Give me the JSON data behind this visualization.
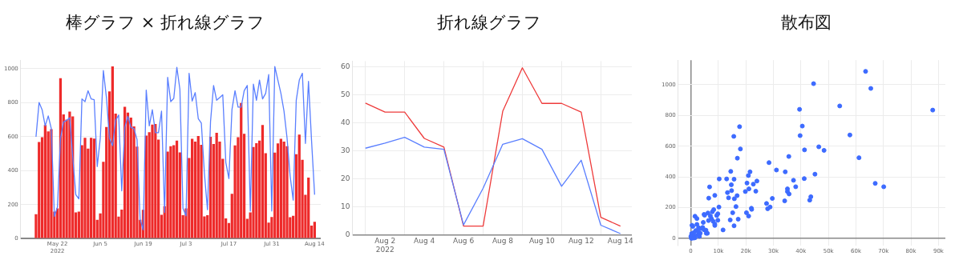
{
  "chart_data": [
    {
      "type": "bar",
      "title": "棒グラフ × 折れ線グラフ",
      "x": [
        "2022-05-15",
        "2022-05-16",
        "2022-05-17",
        "2022-05-18",
        "2022-05-19",
        "2022-05-20",
        "2022-05-21",
        "2022-05-22",
        "2022-05-23",
        "2022-05-24",
        "2022-05-25",
        "2022-05-26",
        "2022-05-27",
        "2022-05-28",
        "2022-05-29",
        "2022-05-30",
        "2022-05-31",
        "2022-06-01",
        "2022-06-02",
        "2022-06-03",
        "2022-06-04",
        "2022-06-05",
        "2022-06-06",
        "2022-06-07",
        "2022-06-08",
        "2022-06-09",
        "2022-06-10",
        "2022-06-11",
        "2022-06-12",
        "2022-06-13",
        "2022-06-14",
        "2022-06-15",
        "2022-06-16",
        "2022-06-17",
        "2022-06-18",
        "2022-06-19",
        "2022-06-20",
        "2022-06-21",
        "2022-06-22",
        "2022-06-23",
        "2022-06-24",
        "2022-06-25",
        "2022-06-26",
        "2022-06-27",
        "2022-06-28",
        "2022-06-29",
        "2022-06-30",
        "2022-07-01",
        "2022-07-02",
        "2022-07-03",
        "2022-07-04",
        "2022-07-05",
        "2022-07-06",
        "2022-07-07",
        "2022-07-08",
        "2022-07-09",
        "2022-07-10",
        "2022-07-11",
        "2022-07-12",
        "2022-07-13",
        "2022-07-14",
        "2022-07-15",
        "2022-07-16",
        "2022-07-17",
        "2022-07-18",
        "2022-07-19",
        "2022-07-20",
        "2022-07-21",
        "2022-07-22",
        "2022-07-23",
        "2022-07-24",
        "2022-07-25",
        "2022-07-26",
        "2022-07-27",
        "2022-07-28",
        "2022-07-29",
        "2022-07-30",
        "2022-07-31",
        "2022-08-01",
        "2022-08-02",
        "2022-08-03",
        "2022-08-04",
        "2022-08-05",
        "2022-08-06",
        "2022-08-07",
        "2022-08-08",
        "2022-08-09",
        "2022-08-10",
        "2022-08-11",
        "2022-08-12",
        "2022-08-13",
        "2022-08-14"
      ],
      "series": [
        {
          "type": "bar",
          "color": "#ee2a2a",
          "values": [
            143,
            568,
            596,
            668,
            631,
            644,
            159,
            178,
            944,
            731,
            700,
            747,
            719,
            154,
            159,
            550,
            593,
            529,
            593,
            588,
            111,
            148,
            452,
            657,
            866,
            1013,
            736,
            129,
            170,
            776,
            741,
            712,
            660,
            541,
            111,
            169,
            606,
            626,
            671,
            674,
            583,
            140,
            191,
            512,
            544,
            550,
            576,
            507,
            137,
            178,
            474,
            587,
            571,
            604,
            552,
            130,
            137,
            599,
            556,
            622,
            571,
            469,
            119,
            91,
            264,
            548,
            596,
            798,
            617,
            116,
            154,
            539,
            561,
            576,
            668,
            502,
            94,
            127,
            506,
            560,
            587,
            571,
            544,
            126,
            134,
            496,
            612,
            464,
            258,
            359,
            76,
            99
          ]
        },
        {
          "type": "line",
          "color": "#5a7fff",
          "values": [
            599,
            801,
            758,
            663,
            722,
            647,
            130,
            186,
            591,
            687,
            695,
            711,
            480,
            258,
            234,
            822,
            806,
            870,
            822,
            817,
            424,
            591,
            989,
            830,
            591,
            547,
            695,
            727,
            281,
            655,
            719,
            655,
            647,
            583,
            114,
            51,
            874,
            663,
            758,
            623,
            623,
            750,
            154,
            949,
            806,
            825,
            1008,
            878,
            178,
            134,
            973,
            809,
            859,
            706,
            680,
            385,
            170,
            687,
            901,
            814,
            830,
            846,
            448,
            353,
            758,
            870,
            774,
            774,
            870,
            901,
            162,
            909,
            814,
            933,
            822,
            854,
            965,
            162,
            1013,
            933,
            854,
            750,
            591,
            369,
            226,
            814,
            933,
            973,
            560,
            925,
            576,
            258
          ]
        }
      ],
      "xlim": [
        "2022-05-10",
        "2022-08-16"
      ],
      "xticks": [
        {
          "value": "2022-05-22",
          "label": "May 22\n2022"
        },
        {
          "value": "2022-06-05",
          "label": "Jun 5"
        },
        {
          "value": "2022-06-19",
          "label": "Jun 19"
        },
        {
          "value": "2022-07-03",
          "label": "Jul 3"
        },
        {
          "value": "2022-07-17",
          "label": "Jul 17"
        },
        {
          "value": "2022-07-31",
          "label": "Jul 31"
        },
        {
          "value": "2022-08-14",
          "label": "Aug 14"
        }
      ],
      "ylim": [
        0,
        1050
      ],
      "yticks": [
        0,
        200,
        400,
        600,
        800,
        1000
      ],
      "grid": "y",
      "legend": false,
      "marker": "none"
    },
    {
      "type": "line",
      "title": "折れ線グラフ",
      "x": [
        "2022-08-01",
        "2022-08-02",
        "2022-08-03",
        "2022-08-04",
        "2022-08-05",
        "2022-08-06",
        "2022-08-07",
        "2022-08-08",
        "2022-08-09",
        "2022-08-10",
        "2022-08-11",
        "2022-08-12",
        "2022-08-13",
        "2022-08-14"
      ],
      "series": [
        {
          "color": "#5a7fff",
          "values": [
            30.9,
            32.7,
            34.8,
            31.3,
            30.5,
            3.5,
            16.6,
            32.3,
            34.3,
            30.5,
            17.3,
            26.6,
            3.4,
            0.4
          ]
        },
        {
          "color": "#ee3b3b",
          "values": [
            47,
            43.8,
            43.8,
            34.4,
            31.3,
            3.1,
            3.1,
            44.1,
            59.6,
            46.9,
            46.9,
            43.8,
            6.2,
            3.1
          ]
        }
      ],
      "xlim": [
        "2022-07-31T08:00",
        "2022-08-14T14:00"
      ],
      "xticks": [
        {
          "value": "2022-08-02",
          "label": "Aug 2\n2022"
        },
        {
          "value": "2022-08-04",
          "label": "Aug 4"
        },
        {
          "value": "2022-08-06",
          "label": "Aug 6"
        },
        {
          "value": "2022-08-08",
          "label": "Aug 8"
        },
        {
          "value": "2022-08-10",
          "label": "Aug 10"
        },
        {
          "value": "2022-08-12",
          "label": "Aug 12"
        },
        {
          "value": "2022-08-14",
          "label": "Aug 14"
        }
      ],
      "ylim": [
        0,
        62
      ],
      "yticks": [
        0,
        10,
        20,
        30,
        40,
        50,
        60
      ],
      "grid": true,
      "legend": false,
      "marker": "none"
    },
    {
      "type": "scatter",
      "title": "散布図",
      "series": [
        {
          "color": "#3d6bff",
          "x": [
            63500,
            44600,
            65400,
            54100,
            87900,
            39500,
            40500,
            17700,
            57800,
            39700,
            15600,
            46500,
            18000,
            41300,
            48400,
            16900,
            35600,
            61100,
            28400,
            31100,
            34300,
            21500,
            14500,
            20900,
            45100,
            10300,
            13000,
            15700,
            41200,
            37300,
            24000,
            67000,
            70100,
            20400,
            14700,
            22700,
            6800,
            35100,
            38100,
            21100,
            14800,
            19800,
            23600,
            35100,
            35700,
            13300,
            16800,
            8700,
            13700,
            29600,
            15800,
            6500,
            43600,
            43200,
            34100,
            27500,
            28800,
            16400,
            10200,
            27900,
            22000,
            22100,
            8300,
            7800,
            6200,
            20200,
            15200,
            9800,
            4800,
            5000,
            7100,
            9400,
            21000,
            1500,
            2200,
            7500,
            17200,
            6400,
            14300,
            9800,
            8100,
            4500,
            8700,
            8700,
            2200,
            400,
            700,
            15700,
            4300,
            2800,
            3600,
            4800,
            11700,
            1800,
            5500,
            2700,
            1100,
            3400,
            5600,
            6000,
            300,
            2600,
            1200,
            3100,
            0,
            1500,
            200,
            1000
          ],
          "values": [
            1087,
            1007,
            976,
            862,
            835,
            840,
            731,
            727,
            673,
            669,
            664,
            596,
            582,
            576,
            573,
            522,
            533,
            525,
            493,
            445,
            433,
            433,
            436,
            409,
            418,
            387,
            387,
            385,
            389,
            378,
            373,
            358,
            336,
            360,
            349,
            353,
            335,
            322,
            336,
            322,
            311,
            305,
            307,
            305,
            289,
            298,
            278,
            280,
            264,
            260,
            258,
            262,
            271,
            249,
            244,
            227,
            204,
            207,
            204,
            193,
            196,
            189,
            187,
            173,
            165,
            167,
            167,
            160,
            156,
            151,
            145,
            149,
            145,
            144,
            129,
            127,
            125,
            116,
            120,
            118,
            111,
            104,
            93,
            84,
            91,
            85,
            78,
            82,
            71,
            69,
            64,
            56,
            55,
            51,
            53,
            42,
            38,
            33,
            33,
            33,
            31,
            22,
            18,
            13,
            13,
            4,
            0,
            2
          ]
        }
      ],
      "xlim": [
        -4600,
        92500
      ],
      "xticks": [
        0,
        {
          "value": 10000,
          "label": "10k"
        },
        {
          "value": 20000,
          "label": "20k"
        },
        {
          "value": 30000,
          "label": "30k"
        },
        {
          "value": 40000,
          "label": "40k"
        },
        {
          "value": 50000,
          "label": "50k"
        },
        {
          "value": 60000,
          "label": "60k"
        },
        {
          "value": 70000,
          "label": "70k"
        },
        {
          "value": 80000,
          "label": "80k"
        },
        {
          "value": 90000,
          "label": "90k"
        }
      ],
      "ylim": [
        -45,
        1160
      ],
      "yticks": [
        0,
        200,
        400,
        600,
        800,
        1000
      ],
      "grid": true,
      "legend": false,
      "marker": "circle"
    }
  ]
}
